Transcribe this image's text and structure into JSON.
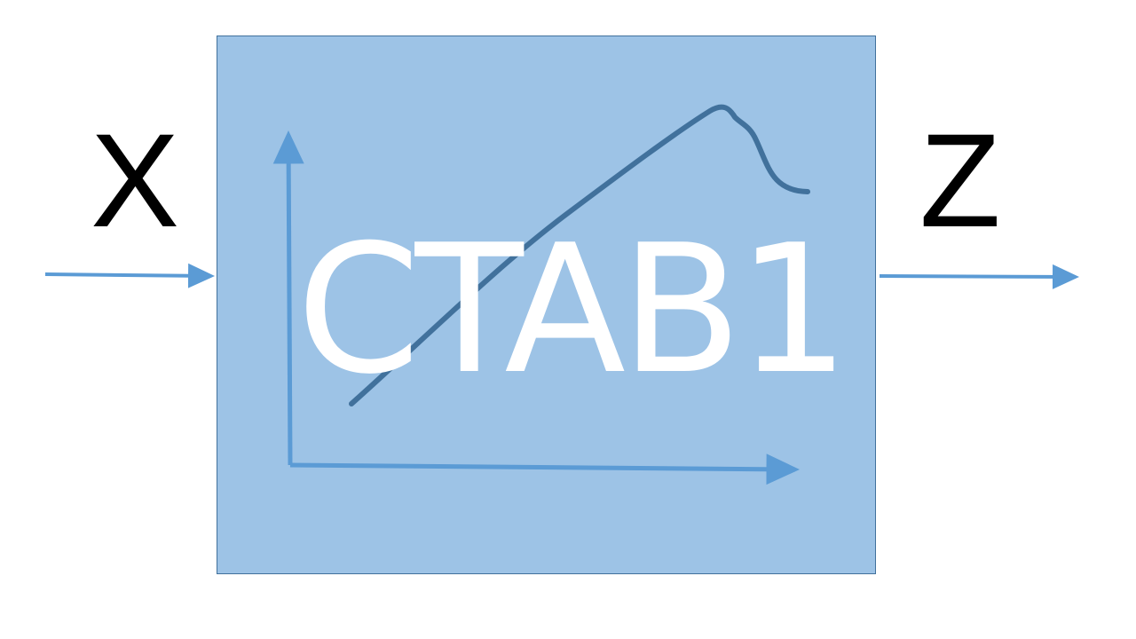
{
  "diagram": {
    "input_label": "X",
    "output_label": "Z",
    "block_label": "CTAB1",
    "icons": {
      "curve": "characteristic-curve-icon",
      "axes": "xy-axes-icon",
      "input_arrow": "arrow-right-icon",
      "output_arrow": "arrow-right-icon"
    },
    "colors": {
      "block_fill": "#9dc3e6",
      "block_border": "#41719c",
      "arrow": "#5b9bd5",
      "curve": "#41719c",
      "block_text": "#ffffff",
      "io_text": "#000000"
    }
  }
}
